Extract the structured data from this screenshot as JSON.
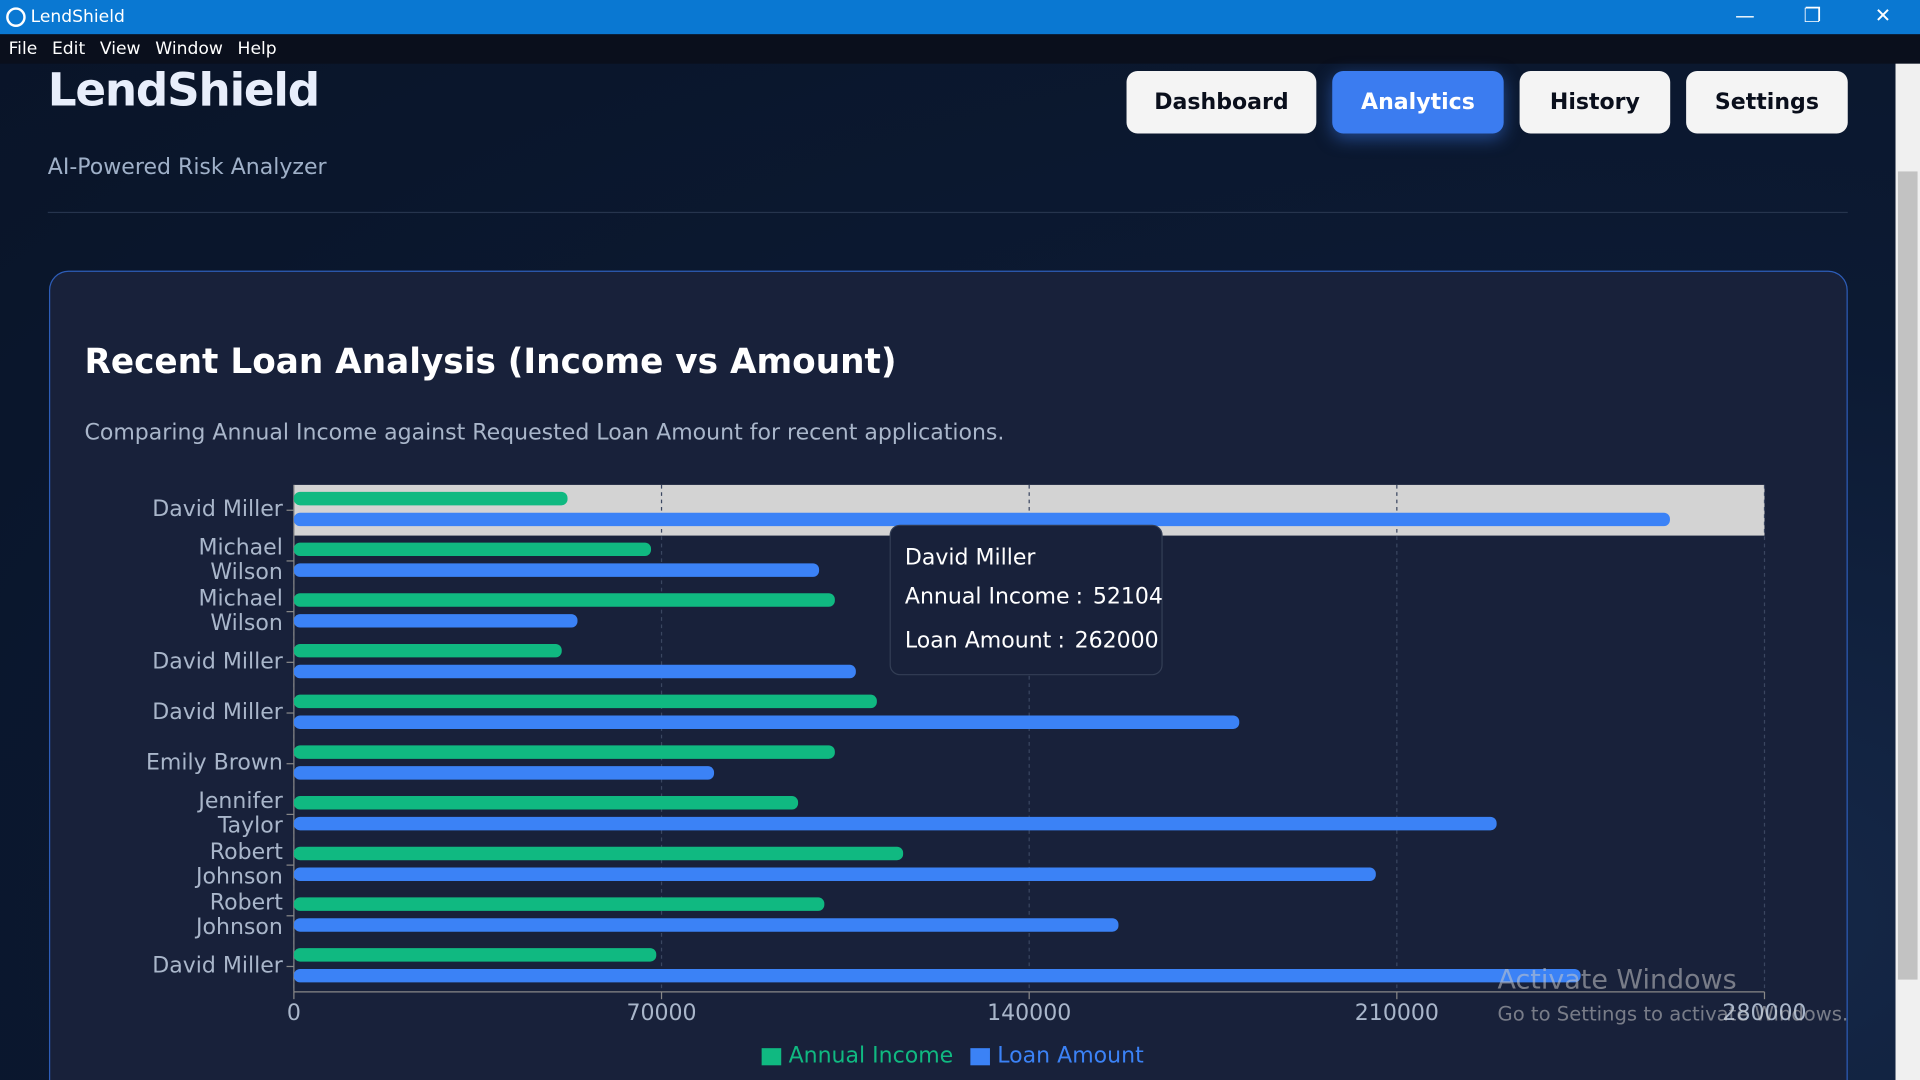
{
  "window": {
    "title": "LendShield",
    "menu": [
      "File",
      "Edit",
      "View",
      "Window",
      "Help"
    ]
  },
  "header": {
    "brand": "LendShield",
    "tagline": "AI-Powered Risk Analyzer",
    "nav": [
      "Dashboard",
      "Analytics",
      "History",
      "Settings"
    ]
  },
  "chart_data": {
    "type": "bar",
    "orientation": "horizontal",
    "title": "Recent Loan Analysis (Income vs Amount)",
    "subtitle": "Comparing Annual Income against Requested Loan Amount for recent applications.",
    "categories": [
      "David Miller",
      "Michael Wilson",
      "Michael Wilson",
      "David Miller",
      "David Miller",
      "Emily Brown",
      "Jennifer Taylor",
      "Robert Johnson",
      "Robert Johnson",
      "David Miller"
    ],
    "series": [
      {
        "name": "Annual Income",
        "color": "#10b981",
        "values": [
          52104,
          68000,
          103000,
          51000,
          111000,
          103000,
          96000,
          116000,
          101000,
          69000
        ]
      },
      {
        "name": "Loan Amount",
        "color": "#3b82f6",
        "values": [
          262000,
          100000,
          54000,
          107000,
          180000,
          80000,
          229000,
          206000,
          157000,
          245000
        ]
      }
    ],
    "xlim": [
      0,
      280000
    ],
    "xticks": [
      0,
      70000,
      140000,
      210000,
      280000
    ],
    "grid": true,
    "legend": "bottom",
    "tooltip_index": 0
  },
  "watermark": {
    "title": "Activate Windows",
    "text": "Go to Settings to activate Windows."
  }
}
